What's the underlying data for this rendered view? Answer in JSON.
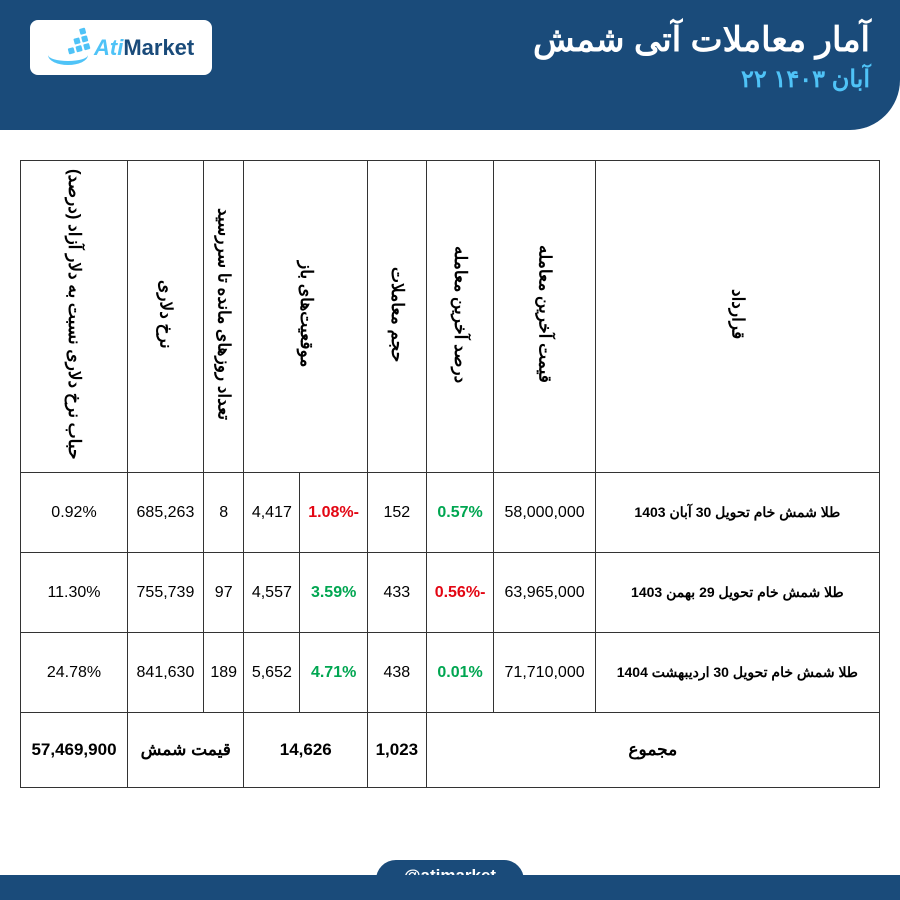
{
  "header": {
    "title": "آمار معاملات آتی شمش",
    "date": "۲۲ آبان ۱۴۰۳",
    "logo_ati": "Ati",
    "logo_market": "Market"
  },
  "columns": {
    "contract": "قرارداد",
    "last_price": "قیمت آخرین معامله",
    "last_pct": "درصد آخرین معامله",
    "volume": "حجم معاملات",
    "open_pos": "موقعیت‌های باز",
    "open_pos_pct": "",
    "days_left": "تعداد روزهای مانده تا سررسید",
    "usd_rate": "نرخ دلاری",
    "bubble": "حباب نرخ دلاری نسبت به دلار آزاد (درصد)"
  },
  "rows": [
    {
      "contract": "طلا شمش خام تحویل 30 آبان 1403",
      "last_price": "58,000,000",
      "last_pct": "0.57%",
      "last_pct_color": "green",
      "volume": "152",
      "open_pos_pct": "-1.08%",
      "open_pos_pct_color": "red",
      "open_pos": "4,417",
      "days_left": "8",
      "usd_rate": "685,263",
      "bubble": "0.92%"
    },
    {
      "contract": "طلا شمش خام تحویل 29 بهمن 1403",
      "last_price": "63,965,000",
      "last_pct": "-0.56%",
      "last_pct_color": "red",
      "volume": "433",
      "open_pos_pct": "3.59%",
      "open_pos_pct_color": "green",
      "open_pos": "4,557",
      "days_left": "97",
      "usd_rate": "755,739",
      "bubble": "11.30%"
    },
    {
      "contract": "طلا شمش خام تحویل 30 اردیبهشت 1404",
      "last_price": "71,710,000",
      "last_pct": "0.01%",
      "last_pct_color": "green",
      "volume": "438",
      "open_pos_pct": "4.71%",
      "open_pos_pct_color": "green",
      "open_pos": "5,652",
      "days_left": "189",
      "usd_rate": "841,630",
      "bubble": "24.78%"
    }
  ],
  "footer": {
    "total_label": "مجموع",
    "total_volume": "1,023",
    "total_open": "14,626",
    "ingot_label": "قیمت شمش",
    "ingot_price": "57,469,900"
  },
  "handle": "@atimarket",
  "colors": {
    "primary": "#1a4b7a",
    "accent": "#4fc3f7",
    "green": "#00a651",
    "red": "#e30613"
  }
}
